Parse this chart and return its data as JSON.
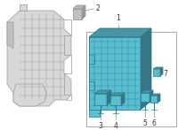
{
  "bg_color": "#ffffff",
  "part_color": "#5bbfd4",
  "part_edge_color": "#2a7a8a",
  "part_dark": "#3d8a9a",
  "part_darker": "#2a6070",
  "label_color": "#333333",
  "line_color": "#888888",
  "grey_edge": "#999999",
  "grey_fill": "#d8d8d8",
  "grey_fill2": "#c0c0c0",
  "border_color": "#aaaaaa",
  "fig_width": 2.0,
  "fig_height": 1.47,
  "dpi": 100
}
